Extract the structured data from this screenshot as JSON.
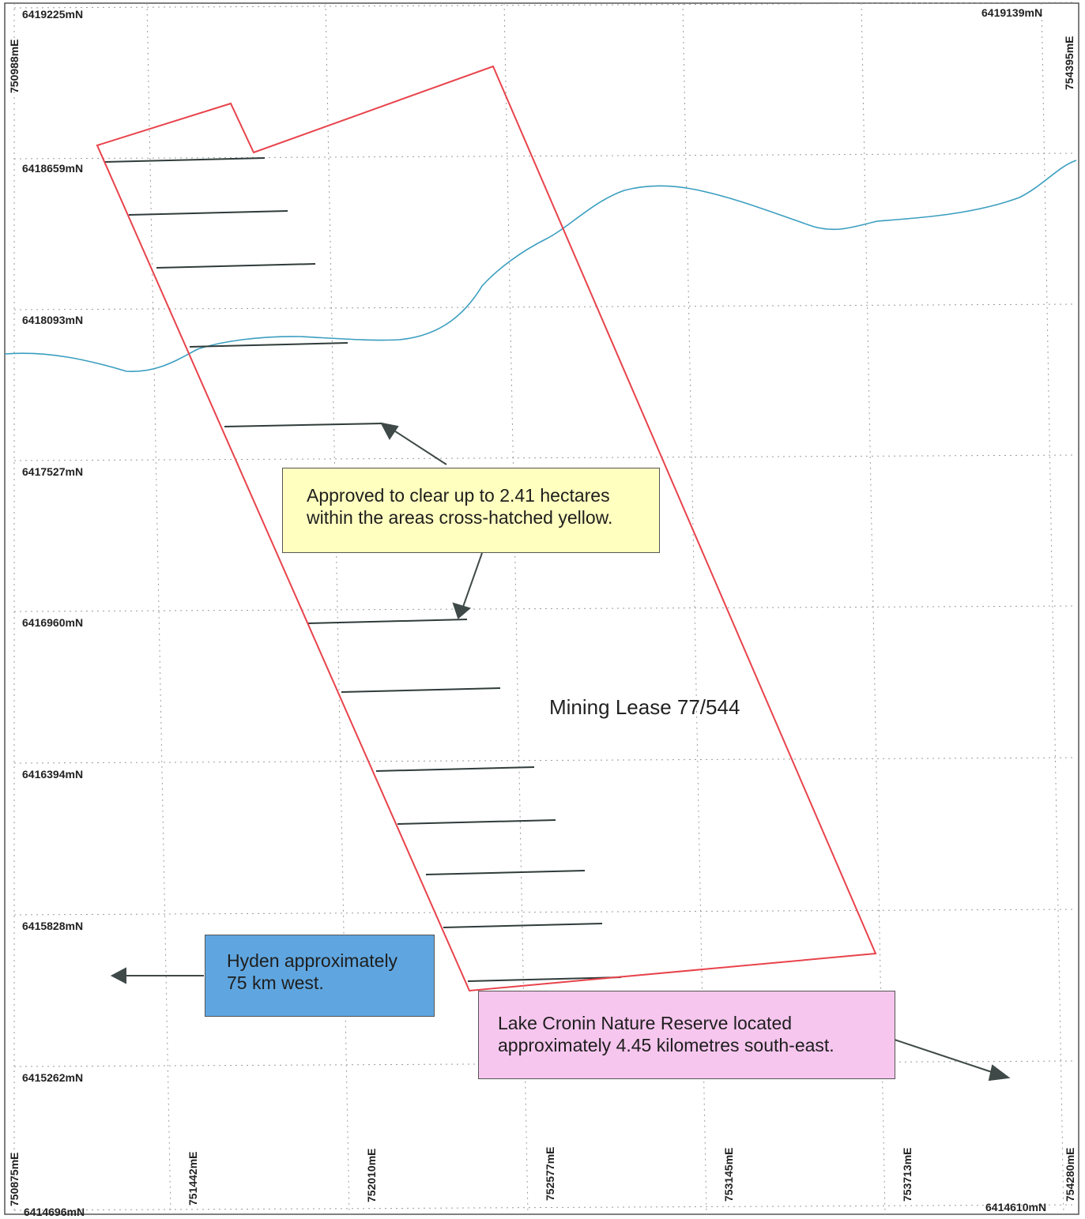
{
  "map": {
    "lease_label": "Mining Lease 77/544",
    "colors": {
      "lease_boundary": "#e8434b",
      "drainage_line": "#3a9ec0",
      "clearing_lines": "#2f3b3a",
      "grid": "#9a9a9a",
      "approved_box": "#ffffbf",
      "hyden_box": "#5fa6e0",
      "lake_box": "#f6c6ee",
      "arrow": "#3f4a48"
    },
    "northings_left": [
      "6419225mN",
      "6418659mN",
      "6418093mN",
      "6417527mN",
      "6416960mN",
      "6416394mN",
      "6415828mN",
      "6415262mN",
      "6414696mN"
    ],
    "northing_top_right": "6419139mN",
    "northing_bottom_right": "6414610mN",
    "eastings_bottom": [
      "750875mE",
      "751442mE",
      "752010mE",
      "752577mE",
      "753145mE",
      "753713mE",
      "754280mE"
    ],
    "easting_top_left": "750988mE",
    "easting_top_right": "754395mE"
  },
  "callouts": {
    "approved": {
      "line1": "Approved to clear up to 2.41 hectares",
      "line2": "within the areas cross-hatched yellow."
    },
    "hyden": {
      "line1": "Hyden approximately",
      "line2": "75 km west."
    },
    "lake": {
      "line1": "Lake Cronin Nature Reserve located",
      "line2": "approximately 4.45 kilometres south-east."
    }
  }
}
